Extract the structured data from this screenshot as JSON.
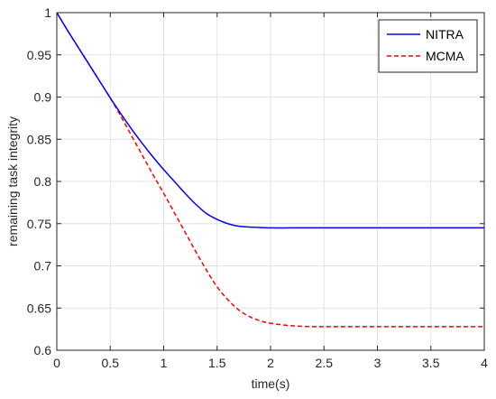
{
  "chart_data": {
    "type": "line",
    "title": "",
    "xlabel": "time(s)",
    "ylabel": "remaining task integrity",
    "xlim": [
      0,
      4
    ],
    "ylim": [
      0.6,
      1
    ],
    "xticks": [
      "0",
      "0.5",
      "1",
      "1.5",
      "2",
      "2.5",
      "3",
      "3.5",
      "4"
    ],
    "yticks": [
      "0.6",
      "0.65",
      "0.7",
      "0.75",
      "0.8",
      "0.85",
      "0.9",
      "0.95",
      "1"
    ],
    "grid": true,
    "legend_position": "top-right",
    "series": [
      {
        "name": "NITRA",
        "color": "#0000ff",
        "style": "solid",
        "x": [
          0,
          0.1,
          0.2,
          0.3,
          0.4,
          0.5,
          0.6,
          0.7,
          0.8,
          0.9,
          1.0,
          1.1,
          1.2,
          1.3,
          1.4,
          1.5,
          1.6,
          1.7,
          1.8,
          1.9,
          2.0,
          2.2,
          2.5,
          3.0,
          3.5,
          4.0
        ],
        "y": [
          1.0,
          0.979,
          0.959,
          0.939,
          0.919,
          0.899,
          0.88,
          0.862,
          0.845,
          0.829,
          0.814,
          0.8,
          0.786,
          0.773,
          0.762,
          0.755,
          0.75,
          0.747,
          0.746,
          0.7455,
          0.745,
          0.745,
          0.745,
          0.745,
          0.745,
          0.745
        ]
      },
      {
        "name": "MCMA",
        "color": "#ff0000",
        "style": "dashed",
        "x": [
          0,
          0.1,
          0.2,
          0.3,
          0.4,
          0.5,
          0.6,
          0.7,
          0.8,
          0.9,
          1.0,
          1.1,
          1.2,
          1.3,
          1.4,
          1.5,
          1.6,
          1.7,
          1.8,
          1.9,
          2.0,
          2.2,
          2.4,
          2.6,
          3.0,
          3.5,
          4.0
        ],
        "y": [
          1.0,
          0.979,
          0.959,
          0.939,
          0.919,
          0.899,
          0.877,
          0.854,
          0.831,
          0.808,
          0.786,
          0.763,
          0.74,
          0.717,
          0.695,
          0.675,
          0.66,
          0.648,
          0.64,
          0.635,
          0.632,
          0.629,
          0.628,
          0.628,
          0.628,
          0.628,
          0.628
        ]
      }
    ]
  }
}
